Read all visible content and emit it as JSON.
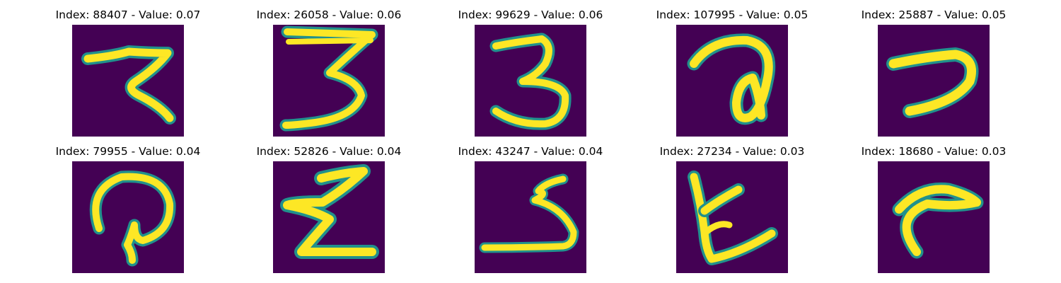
{
  "figure": {
    "background_color": "#440154",
    "stroke_color": "#fde725",
    "edge_color": "#21918c",
    "panels": [
      {
        "title": "Index: 88407 - Value: 0.07",
        "glyph": "digit-7-like"
      },
      {
        "title": "Index: 26058 - Value: 0.06",
        "glyph": "digit-3-like"
      },
      {
        "title": "Index: 99629 - Value: 0.06",
        "glyph": "digit-3-like"
      },
      {
        "title": "Index: 107995 - Value: 0.05",
        "glyph": "looped-a-like"
      },
      {
        "title": "Index: 25887 - Value: 0.05",
        "glyph": "digit-7-like"
      },
      {
        "title": "Index: 79955 - Value: 0.04",
        "glyph": "looped-q-like"
      },
      {
        "title": "Index: 52826 - Value: 0.04",
        "glyph": "z-like"
      },
      {
        "title": "Index: 43247 - Value: 0.04",
        "glyph": "digit-5-like"
      },
      {
        "title": "Index: 27234 - Value: 0.03",
        "glyph": "k-like"
      },
      {
        "title": "Index: 18680 - Value: 0.03",
        "glyph": "curve-like"
      }
    ]
  }
}
